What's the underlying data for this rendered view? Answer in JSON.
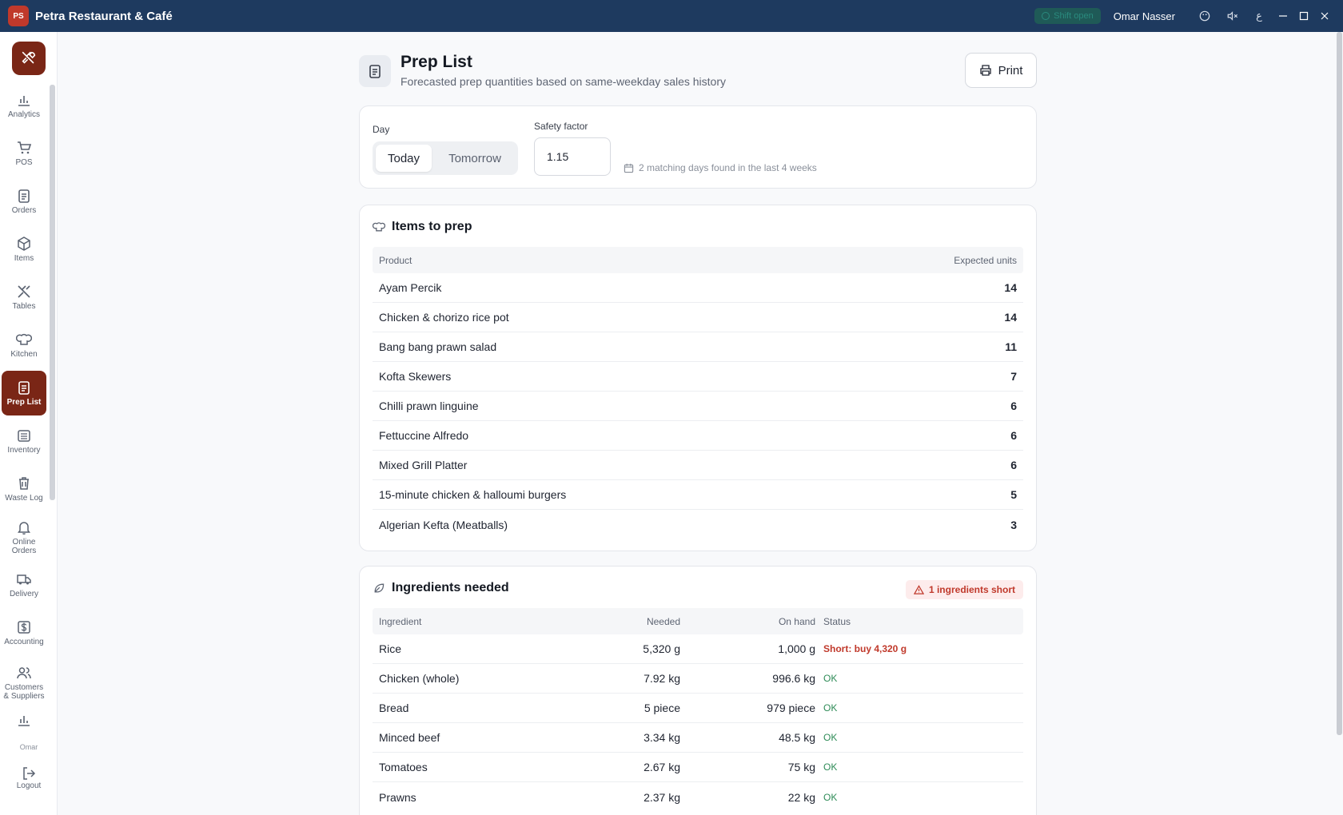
{
  "window": {
    "app_title": "Petra Restaurant & Café",
    "logo_text": "PS",
    "shift_status": "Shift open",
    "user_name": "Omar Nasser"
  },
  "sidebar": {
    "items": [
      {
        "label": "Analytics",
        "icon": "bar-chart-icon"
      },
      {
        "label": "POS",
        "icon": "cart-icon"
      },
      {
        "label": "Orders",
        "icon": "clipboard-icon"
      },
      {
        "label": "Items",
        "icon": "box-icon"
      },
      {
        "label": "Tables",
        "icon": "utensils-icon"
      },
      {
        "label": "Kitchen",
        "icon": "chef-hat-icon"
      },
      {
        "label": "Prep List",
        "icon": "clipboard-list-icon",
        "active": true
      },
      {
        "label": "Inventory",
        "icon": "warehouse-icon"
      },
      {
        "label": "Waste Log",
        "icon": "trash-icon"
      },
      {
        "label": "Online Orders",
        "icon": "bell-icon"
      },
      {
        "label": "Delivery",
        "icon": "truck-icon"
      },
      {
        "label": "Accounting",
        "icon": "dollar-icon"
      },
      {
        "label": "Customers & Suppliers",
        "icon": "users-icon"
      },
      {
        "label": "",
        "icon": "bar-chart-icon"
      }
    ],
    "user_short": "Omar",
    "logout_label": "Logout"
  },
  "header": {
    "title": "Prep List",
    "subtitle": "Forecasted prep quantities based on same-weekday sales history",
    "print_label": "Print"
  },
  "filters": {
    "day_label": "Day",
    "day_options": [
      "Today",
      "Tomorrow"
    ],
    "day_selected": "Today",
    "safety_label": "Safety factor",
    "safety_value": "1.15",
    "match_note": "2 matching days found in the last 4 weeks"
  },
  "prep": {
    "title": "Items to prep",
    "columns": [
      "Product",
      "Expected units"
    ],
    "rows": [
      {
        "product": "Ayam Percik",
        "units": "14"
      },
      {
        "product": "Chicken & chorizo rice pot",
        "units": "14"
      },
      {
        "product": "Bang bang prawn salad",
        "units": "11"
      },
      {
        "product": "Kofta Skewers",
        "units": "7"
      },
      {
        "product": "Chilli prawn linguine",
        "units": "6"
      },
      {
        "product": "Fettuccine Alfredo",
        "units": "6"
      },
      {
        "product": "Mixed Grill Platter",
        "units": "6"
      },
      {
        "product": "15-minute chicken & halloumi burgers",
        "units": "5"
      },
      {
        "product": "Algerian Kefta (Meatballs)",
        "units": "3"
      }
    ]
  },
  "ingredients": {
    "title": "Ingredients needed",
    "short_badge": "1 ingredients short",
    "columns": [
      "Ingredient",
      "Needed",
      "On hand",
      "Status"
    ],
    "rows": [
      {
        "name": "Rice",
        "needed": "5,320 g",
        "on_hand": "1,000 g",
        "status": "Short: buy 4,320 g",
        "short": true
      },
      {
        "name": "Chicken (whole)",
        "needed": "7.92 kg",
        "on_hand": "996.6 kg",
        "status": "OK",
        "short": false
      },
      {
        "name": "Bread",
        "needed": "5 piece",
        "on_hand": "979 piece",
        "status": "OK",
        "short": false
      },
      {
        "name": "Minced beef",
        "needed": "3.34 kg",
        "on_hand": "48.5 kg",
        "status": "OK",
        "short": false
      },
      {
        "name": "Tomatoes",
        "needed": "2.67 kg",
        "on_hand": "75 kg",
        "status": "OK",
        "short": false
      },
      {
        "name": "Prawns",
        "needed": "2.37 kg",
        "on_hand": "22 kg",
        "status": "OK",
        "short": false
      }
    ]
  },
  "colors": {
    "titlebar": "#1e3a5f",
    "accent": "#7a2616",
    "ok": "#2e8b57",
    "short": "#c0392b"
  }
}
